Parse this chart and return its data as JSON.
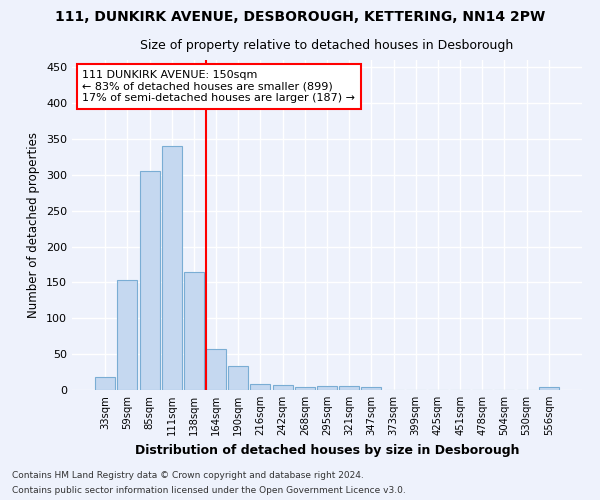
{
  "title1": "111, DUNKIRK AVENUE, DESBOROUGH, KETTERING, NN14 2PW",
  "title2": "Size of property relative to detached houses in Desborough",
  "xlabel": "Distribution of detached houses by size in Desborough",
  "ylabel": "Number of detached properties",
  "bar_labels": [
    "33sqm",
    "59sqm",
    "85sqm",
    "111sqm",
    "138sqm",
    "164sqm",
    "190sqm",
    "216sqm",
    "242sqm",
    "268sqm",
    "295sqm",
    "321sqm",
    "347sqm",
    "373sqm",
    "399sqm",
    "425sqm",
    "451sqm",
    "478sqm",
    "504sqm",
    "530sqm",
    "556sqm"
  ],
  "bar_heights": [
    18,
    153,
    305,
    340,
    165,
    57,
    34,
    9,
    7,
    4,
    5,
    5,
    4,
    0,
    0,
    0,
    0,
    0,
    0,
    0,
    4
  ],
  "bar_color": "#c5d8f0",
  "bar_edge_color": "#7aadd4",
  "vline_index": 5,
  "vline_color": "red",
  "annotation_text": "111 DUNKIRK AVENUE: 150sqm\n← 83% of detached houses are smaller (899)\n17% of semi-detached houses are larger (187) →",
  "annotation_box_color": "white",
  "annotation_box_edge": "red",
  "ylim": [
    0,
    460
  ],
  "yticks": [
    0,
    50,
    100,
    150,
    200,
    250,
    300,
    350,
    400,
    450
  ],
  "footnote1": "Contains HM Land Registry data © Crown copyright and database right 2024.",
  "footnote2": "Contains public sector information licensed under the Open Government Licence v3.0.",
  "background_color": "#eef2fc",
  "grid_color": "white"
}
